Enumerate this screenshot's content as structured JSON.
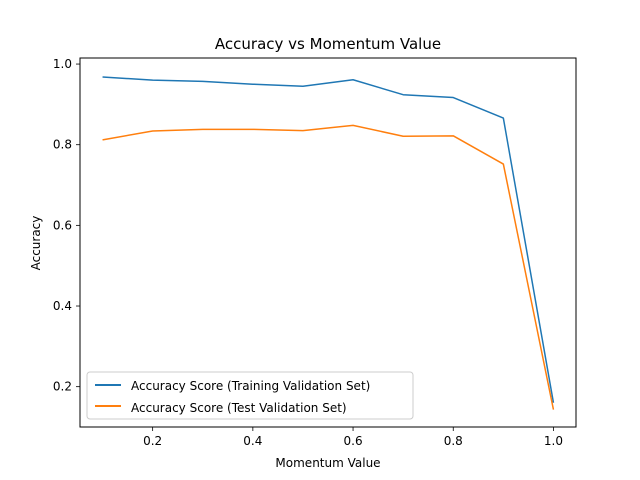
{
  "chart_data": {
    "type": "line",
    "title": "Accuracy vs Momentum Value",
    "xlabel": "Momentum Value",
    "ylabel": "Accuracy",
    "x": [
      0.1,
      0.2,
      0.3,
      0.4,
      0.5,
      0.6,
      0.7,
      0.8,
      0.9,
      1.0
    ],
    "xlim": [
      0.055,
      1.045
    ],
    "ylim": [
      0.1,
      1.015
    ],
    "xticks": [
      0.2,
      0.4,
      0.6,
      0.8,
      1.0
    ],
    "xtick_labels": [
      "0.2",
      "0.4",
      "0.6",
      "0.8",
      "1.0"
    ],
    "yticks": [
      0.2,
      0.4,
      0.6,
      0.8,
      1.0
    ],
    "ytick_labels": [
      "0.2",
      "0.4",
      "0.6",
      "0.8",
      "1.0"
    ],
    "grid": false,
    "legend_position": "lower-left",
    "series": [
      {
        "name": "Accuracy Score (Training Validation Set)",
        "color": "#1f77b4",
        "values": [
          0.968,
          0.96,
          0.957,
          0.95,
          0.945,
          0.961,
          0.924,
          0.917,
          0.866,
          0.16
        ]
      },
      {
        "name": "Accuracy Score (Test Validation Set)",
        "color": "#ff7f0e",
        "values": [
          0.812,
          0.834,
          0.838,
          0.838,
          0.835,
          0.848,
          0.821,
          0.822,
          0.752,
          0.143
        ]
      }
    ]
  }
}
